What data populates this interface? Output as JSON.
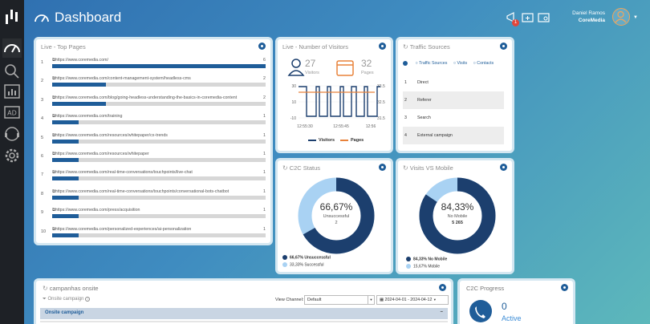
{
  "header": {
    "title": "Dashboard",
    "notification_count": "1",
    "user_name": "Daniel Ramos",
    "user_company": "CoreMedia"
  },
  "top_pages": {
    "title": "Live - Top Pages",
    "rows": [
      {
        "num": "1",
        "url": "https://www.coremedia.com/",
        "count": "6",
        "fill": 1.0
      },
      {
        "num": "2",
        "url": "https://www.coremedia.com/content-management-system/headless-cms",
        "count": "2",
        "fill": 0.25
      },
      {
        "num": "3",
        "url": "https://www.coremedia.com/blog/going-headless-understanding-the-basics-in-coremedia-content",
        "count": "2",
        "fill": 0.25
      },
      {
        "num": "4",
        "url": "https://www.coremedia.com/training",
        "count": "1",
        "fill": 0.125
      },
      {
        "num": "5",
        "url": "https://www.coremedia.com/resources/whitepaper/cx-trends",
        "count": "1",
        "fill": 0.125
      },
      {
        "num": "6",
        "url": "https://www.coremedia.com/resources/whitepaper",
        "count": "1",
        "fill": 0.125
      },
      {
        "num": "7",
        "url": "https://www.coremedia.com/real-time-conversations/touchpoints/live-chat",
        "count": "1",
        "fill": 0.125
      },
      {
        "num": "8",
        "url": "https://www.coremedia.com/real-time-conversations/touchpoints/conversational-bots-chatbot",
        "count": "1",
        "fill": 0.125
      },
      {
        "num": "9",
        "url": "https://www.coremedia.com/press/acquisition",
        "count": "1",
        "fill": 0.125
      },
      {
        "num": "10",
        "url": "https://www.coremedia.com/personalized-experiences/ai-personalization",
        "count": "1",
        "fill": 0.125
      }
    ]
  },
  "visitors": {
    "title": "Live - Number of Visitors",
    "visitors_count": "27",
    "visitors_label": "Visitors",
    "pages_count": "32",
    "pages_label": "Pages",
    "legend_visitors": "Visitors",
    "legend_pages": "Pages"
  },
  "chart_data": {
    "type": "line",
    "x_ticks": [
      "12:55:30",
      "12:55:45",
      "12:56"
    ],
    "y_left_ticks": [
      "30",
      "10",
      "-10"
    ],
    "y_right_ticks": [
      "33.5",
      "32.5",
      "31.5"
    ],
    "series": [
      {
        "name": "Visitors",
        "color": "#1c3f6e"
      },
      {
        "name": "Pages",
        "color": "#e8823a"
      }
    ]
  },
  "traffic": {
    "title": "Traffic Sources",
    "col_sources": "Traffic Sources",
    "col_visits": "Visits",
    "col_contacts": "Contacts",
    "rows": [
      {
        "num": "1",
        "label": "Direct"
      },
      {
        "num": "2",
        "label": "Referer"
      },
      {
        "num": "3",
        "label": "Search"
      },
      {
        "num": "4",
        "label": "External campaign"
      }
    ]
  },
  "c2c_status": {
    "title": "C2C Status",
    "center_pct": "66,67%",
    "center_label": "Unsuccessful",
    "center_value": "2",
    "legend": [
      {
        "label": "66,67% Unsuccessful",
        "color": "#1c3f6e"
      },
      {
        "label": "33,33% Successful",
        "color": "#a9d2f3"
      }
    ],
    "share": 0.6667
  },
  "visits_mobile": {
    "title": "Visits VS Mobile",
    "center_pct": "84,33%",
    "center_label": "No Mobile",
    "center_value": "5 265",
    "legend": [
      {
        "label": "84,33% No Mobile",
        "color": "#1c3f6e"
      },
      {
        "label": "15,67% Mobile",
        "color": "#a9d2f3"
      }
    ],
    "share": 0.8433
  },
  "campaigns": {
    "title": "campanhas onsite",
    "filter_label": "Onsite campaign",
    "view_channel_label": "View Channel:",
    "view_channel_value": "Default",
    "date_range": "2024-04-01 - 2024-04-12",
    "section_header": "Onsite campaign"
  },
  "c2c_progress": {
    "title": "C2C Progress",
    "active_count": "0",
    "active_label": "Active"
  },
  "colors": {
    "accent": "#1f5d99",
    "dark": "#1c3f6e",
    "light": "#a9d2f3",
    "orange": "#e8823a"
  }
}
